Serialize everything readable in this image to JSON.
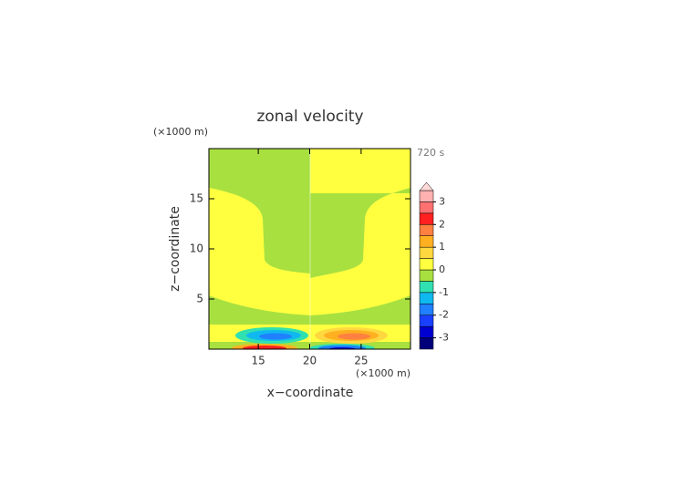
{
  "chart_data": {
    "type": "contour",
    "title": "zonal velocity",
    "x_label": "x−coordinate",
    "y_label": "z−coordinate",
    "x_unit": "(×1000 m)",
    "y_unit": "(×1000 m)",
    "annotation": "720 s",
    "xlim": [
      10.2,
      29.8
    ],
    "xticks": [
      15,
      20,
      25
    ],
    "ylim": [
      0,
      20
    ],
    "yticks": [
      5,
      10,
      15
    ],
    "levels": [
      -3.5,
      -3,
      -2.5,
      -2,
      -1.5,
      -1,
      -0.5,
      0,
      0.5,
      1,
      1.5,
      2,
      2.5,
      3,
      3.5
    ],
    "colors": [
      "#00007a",
      "#0000d0",
      "#1a40ff",
      "#2080ff",
      "#10b8f0",
      "#30e0b0",
      "#a8e040",
      "#ffff40",
      "#ffd840",
      "#ffb020",
      "#ff8040",
      "#ff2020",
      "#ff7070",
      "#ffb0b0"
    ],
    "over_color": "#ffd8d8",
    "colorbar_ticks": [
      -3,
      -2,
      -1,
      0,
      1,
      2,
      3
    ]
  }
}
